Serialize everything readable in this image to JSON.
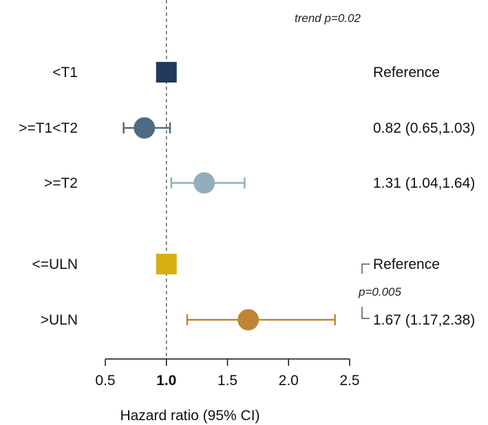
{
  "chart_data": {
    "type": "forest",
    "xlabel": "Hazard ratio (95% CI)",
    "xlim": [
      0.5,
      2.5
    ],
    "ticks": [
      {
        "value": 0.5,
        "label": "0.5",
        "bold": false
      },
      {
        "value": 1.0,
        "label": "1.0",
        "bold": true
      },
      {
        "value": 1.5,
        "label": "1.5",
        "bold": false
      },
      {
        "value": 2.0,
        "label": "2.0",
        "bold": false
      },
      {
        "value": 2.5,
        "label": "2.5",
        "bold": false
      }
    ],
    "reference_line": 1.0,
    "rows": [
      {
        "label": "<T1",
        "hr": 1.0,
        "lower": null,
        "upper": null,
        "reference": true,
        "marker": "square",
        "color": "#213a5c",
        "text": "Reference"
      },
      {
        "label": ">=T1<T2",
        "hr": 0.82,
        "lower": 0.65,
        "upper": 1.03,
        "reference": false,
        "marker": "circle",
        "color": "#4f6b82",
        "text": "0.82 (0.65,1.03)"
      },
      {
        "label": ">=T2",
        "hr": 1.31,
        "lower": 1.04,
        "upper": 1.64,
        "reference": false,
        "marker": "circle",
        "color": "#93aebb",
        "text": "1.31 (1.04,1.64)"
      },
      {
        "label": "<=ULN",
        "hr": 1.0,
        "lower": null,
        "upper": null,
        "reference": true,
        "marker": "square",
        "color": "#d8ad12",
        "text": "Reference"
      },
      {
        "label": ">ULN",
        "hr": 1.67,
        "lower": 1.17,
        "upper": 2.38,
        "reference": false,
        "marker": "circle",
        "color": "#c08534",
        "text": "1.67 (1.17,2.38)"
      }
    ],
    "annotations": {
      "trend": "trend p=0.02",
      "group2_p": "p=0.005"
    }
  }
}
